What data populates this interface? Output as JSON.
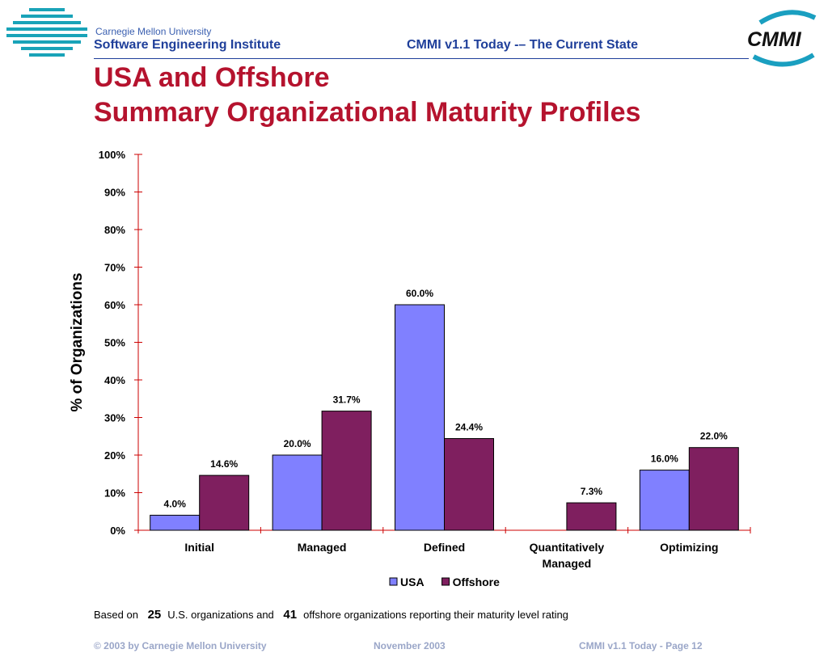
{
  "header": {
    "cmu": "Carnegie Mellon University",
    "sei": "Software Engineering Institute",
    "title": "CMMI v1.1 Today -– The Current State",
    "logo_text": "CMMI"
  },
  "slide": {
    "title_line1": "USA and Offshore",
    "title_line2": "Summary Organizational Maturity Profiles"
  },
  "chart_data": {
    "type": "bar",
    "categories": [
      [
        "Initial"
      ],
      [
        "Managed"
      ],
      [
        "Defined"
      ],
      [
        "Quantitatively",
        "Managed"
      ],
      [
        "Optimizing"
      ]
    ],
    "series": [
      {
        "name": "USA",
        "values": [
          4.0,
          20.0,
          60.0,
          null,
          16.0
        ],
        "labels": [
          "4.0%",
          "20.0%",
          "60.0%",
          "",
          "16.0%"
        ],
        "color": "#8080ff"
      },
      {
        "name": "Offshore",
        "values": [
          14.6,
          31.7,
          24.4,
          7.3,
          22.0
        ],
        "labels": [
          "14.6%",
          "31.7%",
          "24.4%",
          "7.3%",
          "22.0%"
        ],
        "color": "#7f1f5f"
      }
    ],
    "ylabel": "% of Organizations",
    "ylim": [
      0,
      100
    ],
    "yticks": [
      "0%",
      "10%",
      "20%",
      "30%",
      "40%",
      "50%",
      "60%",
      "70%",
      "80%",
      "90%",
      "100%"
    ],
    "axis_color": "#cc0000",
    "grid": false,
    "legend": "bottom"
  },
  "footnote": {
    "prefix": "Based on",
    "us_count": "25",
    "middle": "U.S. organizations and",
    "offshore_count": "41",
    "suffix": "offshore organizations reporting their maturity level rating"
  },
  "footer": {
    "copyright": "© 2003 by Carnegie Mellon University",
    "date": "November 2003",
    "page": "CMMI v1.1 Today - Page 12"
  }
}
